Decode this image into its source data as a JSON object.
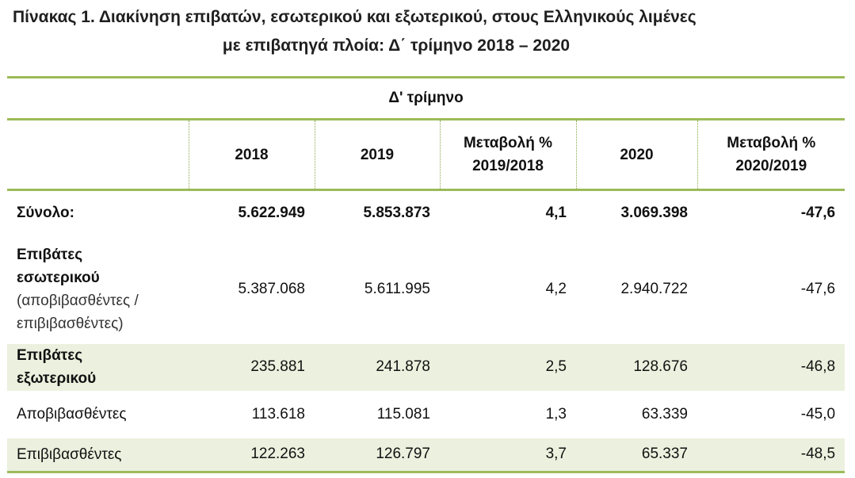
{
  "title": {
    "line1": "Πίνακας 1. Διακίνηση επιβατών, εσωτερικού και εξωτερικού, στους Ελληνικούς λιμένες",
    "line2": "με επιβατηγά πλοία:   Δ΄ τρίμηνο 2018 – 2020"
  },
  "table": {
    "period": "Δ' τρίμηνο",
    "headers": {
      "y2018": "2018",
      "y2019": "2019",
      "change1_line1": "Μεταβολή %",
      "change1_line2": "2019/2018",
      "y2020": "2020",
      "change2_line1": "Μεταβολή %",
      "change2_line2": "2020/2019"
    },
    "rows": {
      "total": {
        "label": "Σύνολο:",
        "v2018": "5.622.949",
        "v2019": "5.853.873",
        "ch1": "4,1",
        "v2020": "3.069.398",
        "ch2": "-47,6"
      },
      "domestic": {
        "label_line1": "Επιβάτες",
        "label_line2": "εσωτερικού",
        "label_line3": "(αποβιβασθέντες /",
        "label_line4": "επιβιβασθέντες)",
        "v2018": "5.387.068",
        "v2019": "5.611.995",
        "ch1": "4,2",
        "v2020": "2.940.722",
        "ch2": "-47,6"
      },
      "foreign": {
        "label_line1": "Επιβάτες",
        "label_line2": "εξωτερικού",
        "v2018": "235.881",
        "v2019": "241.878",
        "ch1": "2,5",
        "v2020": "128.676",
        "ch2": "-46,8"
      },
      "disembarked": {
        "label": "Αποβιβασθέντες",
        "v2018": "113.618",
        "v2019": "115.081",
        "ch1": "1,3",
        "v2020": "63.339",
        "ch2": "-45,0"
      },
      "embarked": {
        "label": "Επιβιβασθέντες",
        "v2018": "122.263",
        "v2019": "126.797",
        "ch1": "3,7",
        "v2020": "65.337",
        "ch2": "-48,5"
      }
    }
  },
  "colors": {
    "rule": "#9bbb59",
    "shade": "#ebf1de"
  }
}
